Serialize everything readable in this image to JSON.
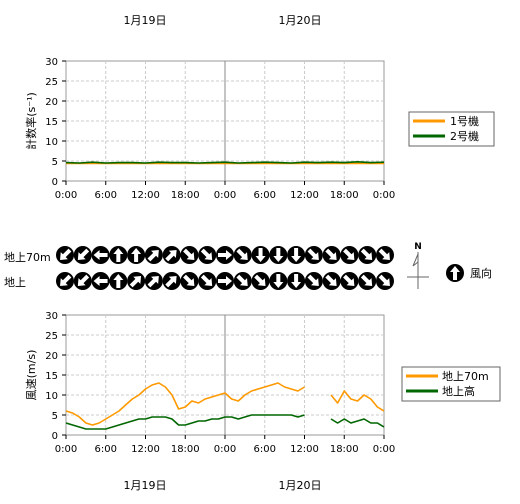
{
  "header": {
    "dates": [
      "1月19日",
      "1月20日"
    ]
  },
  "footer": {
    "dates": [
      "1月19日",
      "1月20日"
    ]
  },
  "x_tick_labels": [
    "0:00",
    "6:00",
    "12:00",
    "18:00",
    "0:00",
    "6:00",
    "12:00",
    "18:00",
    "0:00"
  ],
  "wind_rows": {
    "labels": [
      "地上70m",
      "地上"
    ],
    "compass_north": "N",
    "legend_label": "風向",
    "colors": {
      "disc": "#000000",
      "arrow": "#ffffff"
    }
  },
  "chart_data": [
    {
      "type": "line",
      "ylabel": "計数率(s⁻¹)",
      "ylim": [
        0,
        30
      ],
      "yticks": [
        0,
        5,
        10,
        15,
        20,
        25,
        30
      ],
      "xrange_hours": [
        0,
        48
      ],
      "grid": true,
      "legend": "right",
      "series": [
        {
          "name": "1号機",
          "color": "#ff9900",
          "x": [
            0,
            48
          ],
          "values": [
            4.4,
            4.4
          ]
        },
        {
          "name": "2号機",
          "color": "#006600",
          "x": [
            0,
            2,
            4,
            6,
            8,
            10,
            12,
            14,
            16,
            18,
            20,
            22,
            24,
            26,
            28,
            30,
            32,
            34,
            36,
            38,
            40,
            42,
            44,
            46,
            48
          ],
          "values": [
            4.6,
            4.5,
            4.7,
            4.5,
            4.6,
            4.6,
            4.5,
            4.7,
            4.6,
            4.6,
            4.5,
            4.6,
            4.7,
            4.5,
            4.6,
            4.7,
            4.6,
            4.5,
            4.7,
            4.6,
            4.7,
            4.6,
            4.8,
            4.6,
            4.7
          ]
        }
      ]
    },
    {
      "type": "line",
      "ylabel": "風速(m/s)",
      "ylim": [
        0,
        30
      ],
      "yticks": [
        0,
        5,
        10,
        15,
        20,
        25,
        30
      ],
      "xrange_hours": [
        0,
        48
      ],
      "grid": true,
      "legend": "right",
      "series": [
        {
          "name": "地上70m",
          "color": "#ff9900",
          "x": [
            0,
            1,
            2,
            3,
            4,
            5,
            6,
            7,
            8,
            9,
            10,
            11,
            12,
            13,
            14,
            15,
            16,
            17,
            18,
            19,
            20,
            21,
            22,
            23,
            24,
            25,
            26,
            27,
            28,
            29,
            30,
            31,
            32,
            33,
            34,
            35,
            36,
            37,
            38,
            39,
            40,
            41,
            42,
            43,
            44,
            45,
            46,
            47,
            48
          ],
          "values": [
            6,
            5.5,
            4.5,
            3,
            2.5,
            3,
            4,
            5,
            6,
            7.5,
            9,
            10,
            11.5,
            12.5,
            13,
            12,
            10,
            6.5,
            7,
            8.5,
            8,
            9,
            9.5,
            10,
            10.5,
            9,
            8.5,
            10,
            11,
            11.5,
            12,
            12.5,
            13,
            12,
            11.5,
            11,
            12,
            null,
            null,
            null,
            10,
            8,
            11,
            9,
            8.5,
            10,
            9,
            7,
            6
          ]
        },
        {
          "name": "地上高",
          "color": "#006600",
          "x": [
            0,
            1,
            2,
            3,
            4,
            5,
            6,
            7,
            8,
            9,
            10,
            11,
            12,
            13,
            14,
            15,
            16,
            17,
            18,
            19,
            20,
            21,
            22,
            23,
            24,
            25,
            26,
            27,
            28,
            29,
            30,
            31,
            32,
            33,
            34,
            35,
            36,
            37,
            38,
            39,
            40,
            41,
            42,
            43,
            44,
            45,
            46,
            47,
            48
          ],
          "values": [
            3,
            2.5,
            2,
            1.5,
            1.5,
            1.5,
            1.5,
            2,
            2.5,
            3,
            3.5,
            4,
            4,
            4.5,
            4.5,
            4.5,
            4,
            2.5,
            2.5,
            3,
            3.5,
            3.5,
            4,
            4,
            4.5,
            4.5,
            4,
            4.5,
            5,
            5,
            5,
            5,
            5,
            5,
            5,
            4.5,
            5,
            null,
            null,
            null,
            4,
            3,
            4,
            3,
            3.5,
            4,
            3,
            3,
            2
          ]
        }
      ]
    }
  ]
}
